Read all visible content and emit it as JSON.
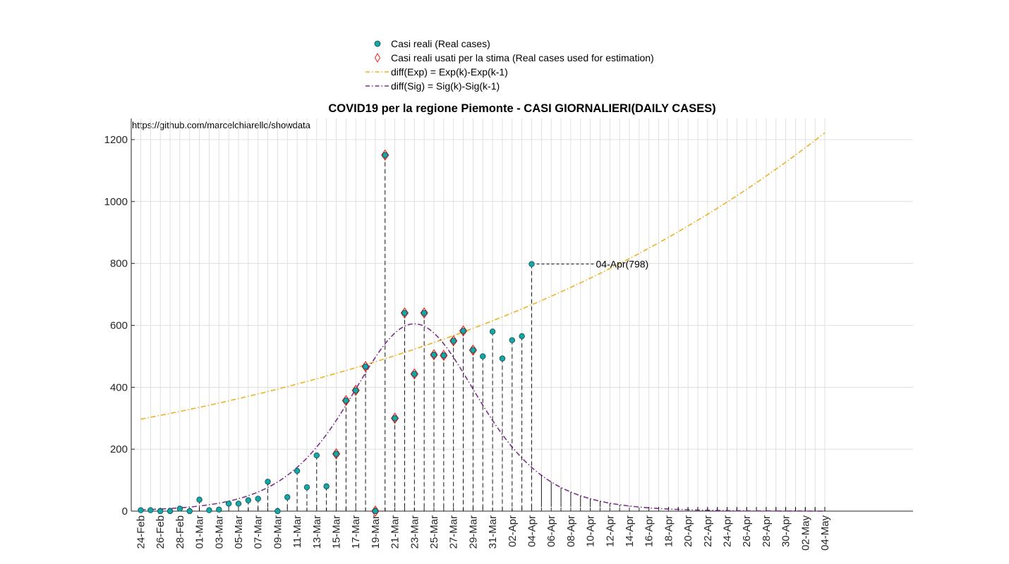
{
  "chart_data": {
    "type": "scatter",
    "title": "COVID19 per la regione Piemonte - CASI GIORNALIERI(DAILY CASES)",
    "source_note": "https://github.com/marcelchiarello/showdata",
    "xlabel": "",
    "ylabel": "",
    "ylim": [
      0,
      1250
    ],
    "yticks": [
      0,
      200,
      400,
      600,
      800,
      1000,
      1200
    ],
    "grid": true,
    "legend_position": "top-center",
    "x_tick_labels": [
      "24-Feb",
      "26-Feb",
      "28-Feb",
      "01-Mar",
      "03-Mar",
      "05-Mar",
      "07-Mar",
      "09-Mar",
      "11-Mar",
      "13-Mar",
      "15-Mar",
      "17-Mar",
      "19-Mar",
      "21-Mar",
      "23-Mar",
      "25-Mar",
      "27-Mar",
      "29-Mar",
      "31-Mar",
      "02-Apr",
      "04-Apr",
      "06-Apr",
      "08-Apr",
      "10-Apr",
      "12-Apr",
      "14-Apr",
      "16-Apr",
      "18-Apr",
      "20-Apr",
      "22-Apr",
      "24-Apr",
      "26-Apr",
      "28-Apr",
      "30-Apr",
      "02-May",
      "04-May"
    ],
    "real_dates": [
      "24-Feb",
      "25-Feb",
      "26-Feb",
      "27-Feb",
      "28-Feb",
      "29-Feb",
      "01-Mar",
      "02-Mar",
      "03-Mar",
      "04-Mar",
      "05-Mar",
      "06-Mar",
      "07-Mar",
      "08-Mar",
      "09-Mar",
      "10-Mar",
      "11-Mar",
      "12-Mar",
      "13-Mar",
      "14-Mar",
      "15-Mar",
      "16-Mar",
      "17-Mar",
      "18-Mar",
      "19-Mar",
      "20-Mar",
      "21-Mar",
      "22-Mar",
      "23-Mar",
      "24-Mar",
      "25-Mar",
      "26-Mar",
      "27-Mar",
      "28-Mar",
      "29-Mar",
      "30-Mar",
      "31-Mar",
      "01-Apr",
      "02-Apr",
      "03-Apr",
      "04-Apr"
    ],
    "real_cases": [
      3,
      3,
      0,
      0,
      8,
      0,
      37,
      3,
      5,
      24,
      24,
      35,
      40,
      95,
      0,
      45,
      130,
      77,
      180,
      80,
      185,
      357,
      390,
      467,
      0,
      1150,
      300,
      640,
      443,
      640,
      505,
      503,
      550,
      582,
      520,
      500,
      580,
      493,
      552,
      565,
      798
    ],
    "estimation_start_index": 20,
    "estimation_end_index": 34,
    "legend": [
      "Casi reali (Real cases)",
      "Casi reali usati per la stima (Real cases used for estimation)",
      "diff(Exp) = Exp(k)-Exp(k-1)",
      "diff(Sig) = Sig(k)-Sig(k-1)"
    ],
    "series": [
      {
        "name": "diff(Exp) = Exp(k)-Exp(k-1)",
        "color": "#EDB120",
        "style": "dash-dot",
        "x_start": "24-Feb",
        "x_end": "04-May",
        "start_value": 297,
        "end_value": 1222
      },
      {
        "name": "diff(Sig) = Sig(k)-Sig(k-1)",
        "color": "#7E2F8E",
        "style": "dash-dot",
        "x_start": "24-Feb",
        "x_end": "04-May",
        "peak_date": "23-Mar",
        "peak_value": 605
      }
    ],
    "annotation": {
      "date": "04-Apr",
      "value": 798,
      "text": "04-Apr(798)"
    },
    "colors": {
      "real_marker_fill": "#18A5A5",
      "real_marker_edge": "#0A4D4D",
      "estimation_marker": "#E8201B",
      "stem": "#000000"
    }
  }
}
